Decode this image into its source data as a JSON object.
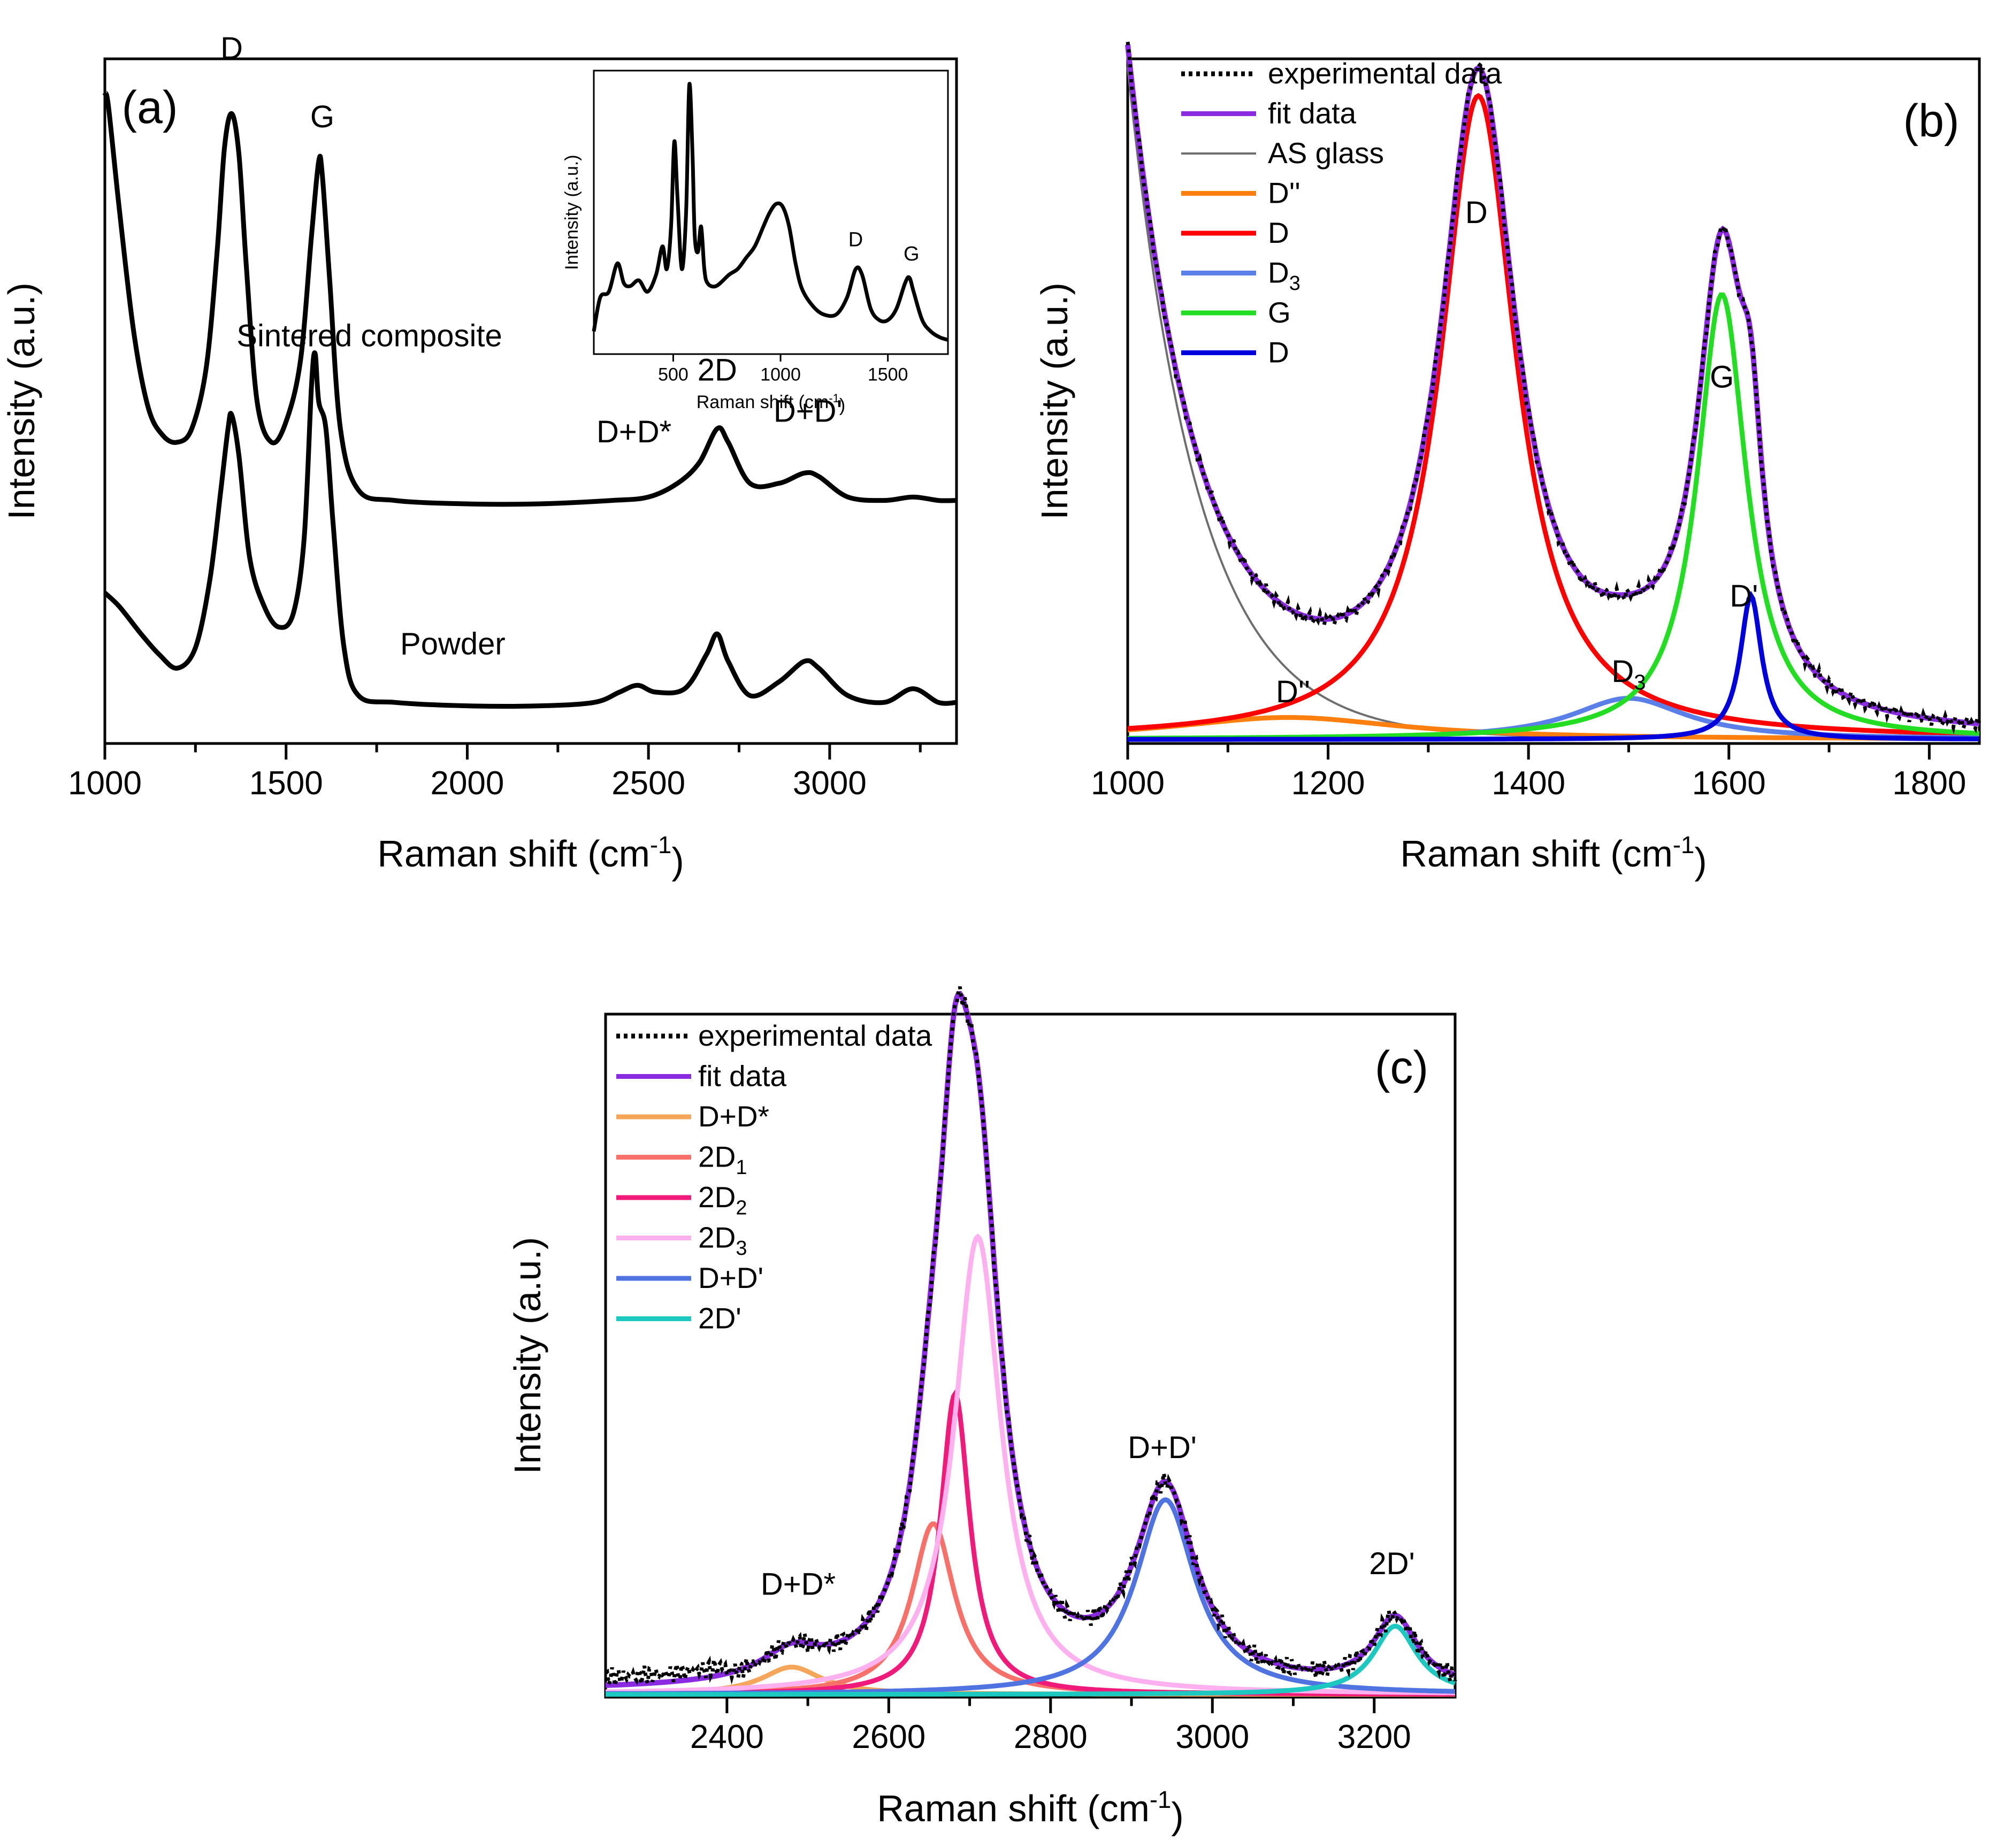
{
  "chart_data": [
    {
      "id": "a",
      "type": "line",
      "panel_label": "(a)",
      "xlabel": "Raman shift (cm",
      "xlabel_sup": "-1",
      "xlabel_end": ")",
      "ylabel": "Intensity (a.u.)",
      "xlim": [
        1000,
        3350
      ],
      "ylim": [
        0,
        1.0
      ],
      "xticks": [
        1000,
        1500,
        2000,
        2500,
        3000
      ],
      "legend": "none",
      "series": [
        {
          "name": "Sintered composite",
          "color": "#000000",
          "x": [
            1000,
            1010,
            1040,
            1080,
            1120,
            1160,
            1200,
            1240,
            1280,
            1310,
            1330,
            1350,
            1370,
            1390,
            1420,
            1460,
            1500,
            1540,
            1570,
            1590,
            1600,
            1620,
            1650,
            1700,
            1800,
            2000,
            2200,
            2400,
            2500,
            2580,
            2640,
            2690,
            2720,
            2780,
            2860,
            2930,
            2970,
            3050,
            3150,
            3230,
            3300,
            3350
          ],
          "y": [
            0.95,
            0.93,
            0.78,
            0.6,
            0.49,
            0.45,
            0.44,
            0.46,
            0.55,
            0.72,
            0.87,
            0.92,
            0.86,
            0.7,
            0.5,
            0.44,
            0.47,
            0.56,
            0.74,
            0.85,
            0.83,
            0.68,
            0.46,
            0.37,
            0.355,
            0.35,
            0.35,
            0.355,
            0.36,
            0.38,
            0.41,
            0.46,
            0.44,
            0.38,
            0.38,
            0.395,
            0.39,
            0.36,
            0.355,
            0.36,
            0.355,
            0.355
          ]
        },
        {
          "name": "Powder",
          "color": "#000000",
          "x": [
            1000,
            1040,
            1100,
            1150,
            1200,
            1250,
            1290,
            1320,
            1340,
            1350,
            1370,
            1400,
            1440,
            1480,
            1520,
            1550,
            1570,
            1580,
            1590,
            1610,
            1630,
            1660,
            1700,
            1800,
            2000,
            2200,
            2350,
            2420,
            2470,
            2520,
            2600,
            2660,
            2690,
            2720,
            2780,
            2860,
            2930,
            2970,
            3050,
            3150,
            3230,
            3300,
            3350
          ],
          "y": [
            0.22,
            0.2,
            0.16,
            0.13,
            0.11,
            0.14,
            0.24,
            0.37,
            0.46,
            0.48,
            0.42,
            0.27,
            0.2,
            0.17,
            0.19,
            0.3,
            0.52,
            0.57,
            0.5,
            0.46,
            0.32,
            0.14,
            0.07,
            0.06,
            0.055,
            0.055,
            0.06,
            0.075,
            0.085,
            0.075,
            0.08,
            0.13,
            0.16,
            0.12,
            0.07,
            0.09,
            0.12,
            0.11,
            0.07,
            0.06,
            0.08,
            0.06,
            0.06
          ]
        }
      ],
      "annotations": [
        {
          "text": "D",
          "x": 1350,
          "y": 1.0
        },
        {
          "text": "G",
          "x": 1600,
          "y": 0.9
        },
        {
          "text": "Sintered composite",
          "x": 1730,
          "y": 0.58
        },
        {
          "text": "2D",
          "x": 2690,
          "y": 0.53
        },
        {
          "text": "D+D*",
          "x": 2460,
          "y": 0.44
        },
        {
          "text": "D+D'",
          "x": 2940,
          "y": 0.47
        },
        {
          "text": "Powder",
          "x": 1960,
          "y": 0.13
        }
      ],
      "inset": {
        "type": "line",
        "xlabel": "Raman shift (cm",
        "xlabel_sup": "-1",
        "xlabel_end": ")",
        "ylabel": "Intensity (a.u.)",
        "xlim": [
          130,
          1780
        ],
        "ylim": [
          0,
          1.0
        ],
        "xticks": [
          500,
          1000,
          1500
        ],
        "series": {
          "x": [
            130,
            160,
            200,
            240,
            270,
            300,
            340,
            380,
            420,
            450,
            470,
            490,
            505,
            520,
            540,
            560,
            575,
            590,
            600,
            615,
            630,
            645,
            660,
            700,
            760,
            800,
            840,
            880,
            920,
            950,
            980,
            1010,
            1040,
            1070,
            1100,
            1150,
            1200,
            1260,
            1310,
            1350,
            1380,
            1420,
            1460,
            1500,
            1540,
            1580,
            1600,
            1620,
            1660,
            1700,
            1740,
            1780
          ],
          "y": [
            0.08,
            0.2,
            0.22,
            0.32,
            0.25,
            0.24,
            0.26,
            0.22,
            0.28,
            0.38,
            0.3,
            0.45,
            0.75,
            0.55,
            0.3,
            0.5,
            0.95,
            0.7,
            0.42,
            0.36,
            0.45,
            0.3,
            0.25,
            0.24,
            0.28,
            0.3,
            0.34,
            0.38,
            0.45,
            0.5,
            0.53,
            0.52,
            0.45,
            0.32,
            0.23,
            0.17,
            0.14,
            0.14,
            0.2,
            0.3,
            0.28,
            0.16,
            0.12,
            0.12,
            0.16,
            0.25,
            0.27,
            0.22,
            0.12,
            0.08,
            0.06,
            0.05
          ]
        },
        "annotations": [
          {
            "text": "D",
            "x": 1350,
            "y": 0.38
          },
          {
            "text": "G",
            "x": 1610,
            "y": 0.33
          }
        ]
      }
    },
    {
      "id": "b",
      "type": "line",
      "panel_label": "(b)",
      "xlabel": "Raman shift (cm",
      "xlabel_sup": "-1",
      "xlabel_end": ")",
      "ylabel": "Intensity (a.u.)",
      "xlim": [
        1000,
        1850
      ],
      "ylim": [
        0,
        1.0
      ],
      "xticks": [
        1000,
        1200,
        1400,
        1600,
        1800
      ],
      "legend": "top-left",
      "legend_entries": [
        {
          "label": "experimental data",
          "sub": "",
          "color": "#000000",
          "dash": true
        },
        {
          "label": "fit data",
          "sub": "",
          "color": "#8a2be2",
          "dash": false
        },
        {
          "label": "AS glass",
          "sub": "",
          "color": "#6e6e6e",
          "dash": false
        },
        {
          "label": "D''",
          "sub": "",
          "color": "#ff7f0e",
          "dash": false
        },
        {
          "label": "D",
          "sub": "",
          "color": "#ff0000",
          "dash": false
        },
        {
          "label": "D",
          "sub": "3",
          "color": "#5b7fe8",
          "dash": false
        },
        {
          "label": "G",
          "sub": "",
          "color": "#22dd22",
          "dash": false
        },
        {
          "label": "D",
          "sub": "",
          "color": "#0000dd",
          "dash": false
        }
      ],
      "components": {
        "baseline": {
          "name": "AS glass",
          "a": 0.98,
          "k": 70
        },
        "peaks": [
          {
            "name": "D''",
            "x0": 1160,
            "amp": 0.032,
            "w": 140
          },
          {
            "name": "D",
            "x0": 1350,
            "amp": 0.94,
            "w": 46
          },
          {
            "name": "D3",
            "x0": 1500,
            "amp": 0.06,
            "w": 70
          },
          {
            "name": "G",
            "x0": 1593,
            "amp": 0.65,
            "w": 30
          },
          {
            "name": "D'",
            "x0": 1622,
            "amp": 0.21,
            "w": 13
          }
        ]
      },
      "annotations": [
        {
          "text": "D",
          "sub": "",
          "x": 1348,
          "y": 0.76
        },
        {
          "text": "G",
          "sub": "",
          "x": 1593,
          "y": 0.52
        },
        {
          "text": "D'",
          "sub": "",
          "x": 1615,
          "y": 0.2
        },
        {
          "text": "D",
          "sub": "3",
          "x": 1500,
          "y": 0.09
        },
        {
          "text": "D''",
          "sub": "",
          "x": 1165,
          "y": 0.06
        }
      ]
    },
    {
      "id": "c",
      "type": "line",
      "panel_label": "(c)",
      "xlabel": "Raman shift (cm",
      "xlabel_sup": "-1",
      "xlabel_end": ")",
      "ylabel": "Intensity (a.u.)",
      "xlim": [
        2250,
        3300
      ],
      "ylim": [
        0,
        1.0
      ],
      "xticks": [
        2400,
        2600,
        2800,
        3000,
        3200
      ],
      "legend": "top-left",
      "legend_entries": [
        {
          "label": "experimental data",
          "sub": "",
          "color": "#000000",
          "dash": true
        },
        {
          "label": "fit data",
          "sub": "",
          "color": "#8a2be2",
          "dash": false
        },
        {
          "label": "D+D*",
          "sub": "",
          "color": "#f5a65b",
          "dash": false
        },
        {
          "label": "2D",
          "sub": "1",
          "color": "#f7706a",
          "dash": false
        },
        {
          "label": "2D",
          "sub": "2",
          "color": "#f01a7a",
          "dash": false
        },
        {
          "label": "2D",
          "sub": "3",
          "color": "#ffb0ee",
          "dash": false
        },
        {
          "label": "D+D'",
          "sub": "",
          "color": "#4f73e0",
          "dash": false
        },
        {
          "label": "2D'",
          "sub": "",
          "color": "#1cc8c0",
          "dash": false
        }
      ],
      "components": {
        "offset": 0.008,
        "peaks": [
          {
            "name": "D+D*",
            "x0": 2480,
            "amp": 0.04,
            "w": 45
          },
          {
            "name": "2D1",
            "x0": 2655,
            "amp": 0.25,
            "w": 32
          },
          {
            "name": "2D2",
            "x0": 2682,
            "amp": 0.44,
            "w": 22
          },
          {
            "name": "2D3",
            "x0": 2710,
            "amp": 0.67,
            "w": 35
          },
          {
            "name": "D+D'",
            "x0": 2942,
            "amp": 0.285,
            "w": 45
          },
          {
            "name": "2D'",
            "x0": 3226,
            "amp": 0.1,
            "w": 33
          }
        ]
      },
      "annotations": [
        {
          "text": "D+D*",
          "x": 2488,
          "y": 0.15
        },
        {
          "text": "D+D'",
          "x": 2938,
          "y": 0.35
        },
        {
          "text": "2D'",
          "x": 3222,
          "y": 0.18
        }
      ]
    }
  ]
}
